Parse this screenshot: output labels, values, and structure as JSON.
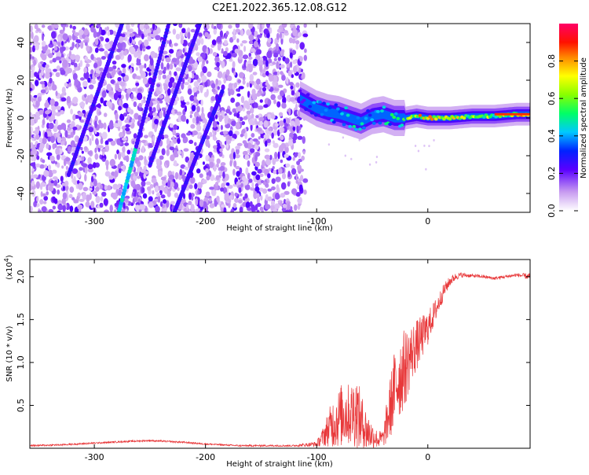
{
  "title": "C2E1.2022.365.12.08.G12",
  "chart_data": [
    {
      "type": "heatmap",
      "title": "",
      "xlabel": "Height of straight line (km)",
      "ylabel": "Frequency (Hz)",
      "xlim": [
        -358,
        92
      ],
      "ylim": [
        -50,
        50
      ],
      "xticks": [
        -300,
        -200,
        -100,
        0
      ],
      "yticks": [
        -40,
        -20,
        0,
        20,
        40
      ],
      "xtick_labels": [
        "-300",
        "-200",
        "-100",
        "0"
      ],
      "ytick_labels": [
        "-40",
        "-20",
        "0",
        "20",
        "40"
      ],
      "colorbar": {
        "label": "Normalized spectral amplitude",
        "range": [
          0,
          1
        ],
        "ticks": [
          0.0,
          0.2,
          0.4,
          0.6,
          0.8
        ],
        "tick_labels": [
          "0.0",
          "0.2",
          "0.4",
          "0.6",
          "0.8"
        ]
      },
      "streaks": [
        {
          "x": [
            -323,
            -275
          ],
          "y": [
            -30,
            50
          ]
        },
        {
          "x": [
            -278,
            -233
          ],
          "y": [
            -50,
            50
          ]
        },
        {
          "x": [
            -250,
            -205
          ],
          "y": [
            -25,
            50
          ]
        },
        {
          "x": [
            -228,
            -185
          ],
          "y": [
            -50,
            14
          ]
        }
      ],
      "ridge": {
        "x": [
          -115,
          -100,
          -90,
          -80,
          -70,
          -60,
          -50,
          -40,
          -30,
          -20,
          -10,
          0,
          10,
          20,
          40,
          60,
          80,
          92
        ],
        "y": [
          10,
          5,
          3,
          2,
          0,
          -2,
          1,
          2,
          0,
          0,
          1,
          0,
          0,
          0,
          1,
          1,
          2,
          2
        ],
        "peak_amplitude": [
          0.3,
          0.45,
          0.5,
          0.45,
          0.5,
          0.55,
          0.45,
          0.5,
          0.55,
          0.6,
          0.85,
          0.9,
          0.85,
          0.8,
          0.75,
          0.7,
          0.8,
          0.9
        ]
      },
      "noise_region_x": [
        -358,
        -110
      ]
    },
    {
      "type": "line",
      "title": "",
      "xlabel": "Height of straight line (km)",
      "ylabel": "SNR (10 * v/v)",
      "scale_label": "(x10",
      "scale_exponent": "4",
      "scale_suffix": ")",
      "xlim": [
        -358,
        92
      ],
      "ylim": [
        0,
        2.2
      ],
      "xticks": [
        -300,
        -200,
        -100,
        0
      ],
      "yticks": [
        0.5,
        1.0,
        1.5,
        2.0
      ],
      "xtick_labels": [
        "-300",
        "-200",
        "-100",
        "0"
      ],
      "ytick_labels": [
        "0.5",
        "1.0",
        "1.5",
        "2.0"
      ],
      "color": "#e8383a",
      "series": [
        {
          "x": [
            -358,
            -330,
            -300,
            -270,
            -250,
            -220,
            -200,
            -170,
            -140,
            -120,
            -100,
            -95,
            -90,
            -85,
            -80,
            -75,
            -70,
            -65,
            -60,
            -55,
            -50,
            -45,
            -40,
            -35,
            -30,
            -25,
            -20,
            -15,
            -10,
            -5,
            0,
            5,
            10,
            15,
            20,
            25,
            30,
            40,
            50,
            60,
            70,
            80,
            92
          ],
          "y": [
            0.03,
            0.04,
            0.06,
            0.08,
            0.09,
            0.07,
            0.05,
            0.03,
            0.03,
            0.03,
            0.05,
            0.12,
            0.22,
            0.3,
            0.35,
            0.42,
            0.38,
            0.45,
            0.3,
            0.2,
            0.15,
            0.1,
            0.12,
            0.4,
            0.7,
            0.85,
            0.95,
            1.1,
            1.2,
            1.3,
            1.4,
            1.55,
            1.7,
            1.85,
            1.95,
            2.0,
            2.02,
            2.01,
            2.0,
            1.98,
            2.0,
            2.02,
            2.0
          ],
          "spread": [
            0.01,
            0.01,
            0.01,
            0.01,
            0.01,
            0.01,
            0.01,
            0.01,
            0.01,
            0.01,
            0.03,
            0.1,
            0.2,
            0.3,
            0.35,
            0.4,
            0.35,
            0.45,
            0.35,
            0.25,
            0.15,
            0.1,
            0.1,
            0.35,
            0.45,
            0.5,
            0.45,
            0.35,
            0.3,
            0.25,
            0.2,
            0.15,
            0.12,
            0.08,
            0.06,
            0.04,
            0.03,
            0.02,
            0.02,
            0.02,
            0.02,
            0.02,
            0.04
          ]
        }
      ]
    }
  ]
}
